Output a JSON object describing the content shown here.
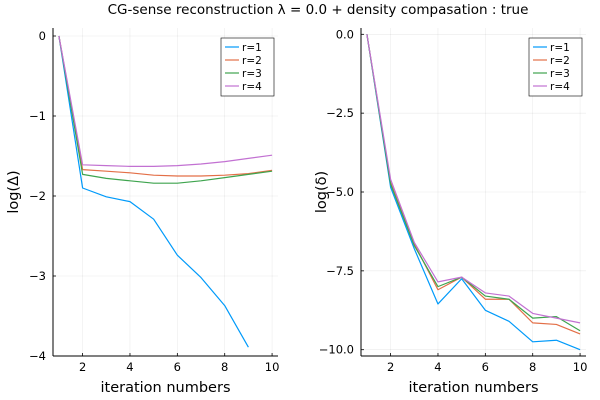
{
  "figure": {
    "title": "CG-sense reconstruction λ = 0.0 + density compasation : true"
  },
  "chart_data": [
    {
      "type": "line",
      "title": "",
      "xlabel": "iteration numbers",
      "ylabel": "log(Δ)",
      "xlim": [
        0.75,
        10.25
      ],
      "ylim": [
        -4.0,
        0.1
      ],
      "x_ticks": [
        2,
        4,
        6,
        8,
        10
      ],
      "y_ticks": [
        0,
        -1,
        -2,
        -3,
        -4
      ],
      "grid": true,
      "legend_position": "top-right",
      "x": [
        1,
        2,
        3,
        4,
        5,
        6,
        7,
        8,
        9,
        10
      ],
      "series": [
        {
          "name": "r=1",
          "color": "#009AFA",
          "values": [
            0.0,
            -1.9,
            -2.01,
            -2.07,
            -2.29,
            -2.74,
            -3.02,
            -3.37,
            -3.89,
            null
          ]
        },
        {
          "name": "r=2",
          "color": "#E36F47",
          "values": [
            0.0,
            -1.67,
            -1.69,
            -1.71,
            -1.74,
            -1.75,
            -1.75,
            -1.74,
            -1.72,
            -1.68
          ]
        },
        {
          "name": "r=3",
          "color": "#3EA44E",
          "values": [
            0.0,
            -1.73,
            -1.78,
            -1.81,
            -1.84,
            -1.84,
            -1.81,
            -1.77,
            -1.73,
            -1.69
          ]
        },
        {
          "name": "r=4",
          "color": "#C271D2",
          "values": [
            0.0,
            -1.61,
            -1.62,
            -1.63,
            -1.63,
            -1.62,
            -1.6,
            -1.57,
            -1.53,
            -1.49
          ]
        }
      ]
    },
    {
      "type": "line",
      "title": "",
      "xlabel": "iteration numbers",
      "ylabel": "log(δ)",
      "xlim": [
        0.75,
        10.25
      ],
      "ylim": [
        -10.2,
        0.2
      ],
      "x_ticks": [
        2,
        4,
        6,
        8,
        10
      ],
      "y_ticks": [
        0.0,
        -2.5,
        -5.0,
        -7.5,
        -10.0
      ],
      "y_tick_labels": [
        "0.0",
        "-2.5",
        "-5.0",
        "-7.5",
        "-10.0"
      ],
      "grid": true,
      "legend_position": "top-right",
      "x": [
        1,
        2,
        3,
        4,
        5,
        6,
        7,
        8,
        9,
        10
      ],
      "series": [
        {
          "name": "r=1",
          "color": "#009AFA",
          "values": [
            0.0,
            -4.85,
            -6.8,
            -8.55,
            -7.75,
            -8.75,
            -9.1,
            -9.75,
            -9.7,
            -10.0
          ]
        },
        {
          "name": "r=2",
          "color": "#E36F47",
          "values": [
            0.0,
            -4.7,
            -6.65,
            -8.1,
            -7.7,
            -8.4,
            -8.4,
            -9.15,
            -9.2,
            -9.5
          ]
        },
        {
          "name": "r=3",
          "color": "#3EA44E",
          "values": [
            0.0,
            -4.75,
            -6.7,
            -8.0,
            -7.7,
            -8.3,
            -8.4,
            -9.0,
            -8.95,
            -9.4
          ]
        },
        {
          "name": "r=4",
          "color": "#C271D2",
          "values": [
            0.0,
            -4.6,
            -6.6,
            -7.85,
            -7.7,
            -8.2,
            -8.3,
            -8.85,
            -9.0,
            -9.15
          ]
        }
      ]
    }
  ]
}
